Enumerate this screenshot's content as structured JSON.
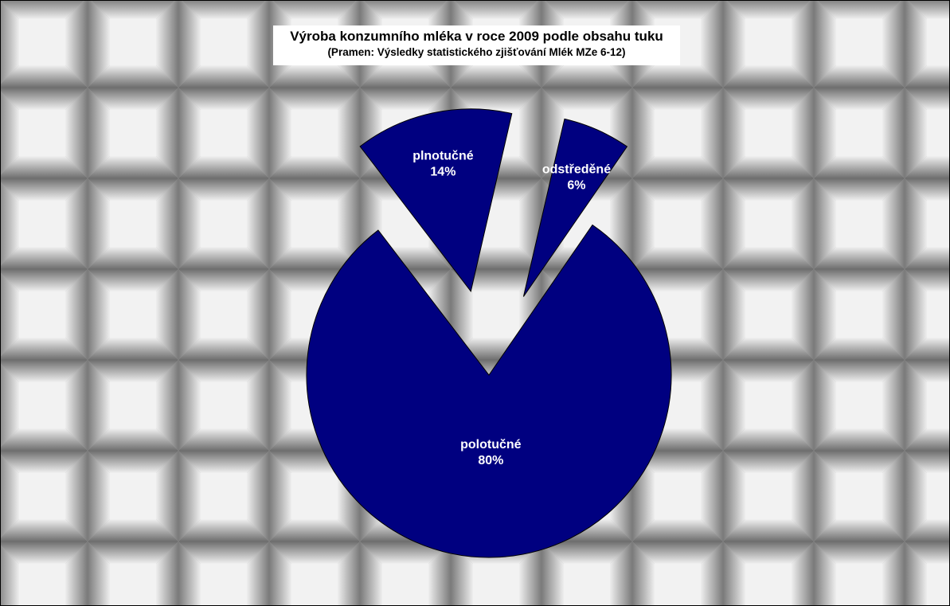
{
  "chart_data": {
    "type": "pie",
    "title": "Výroba konzumního mléka v roce 2009 podle obsahu tuku",
    "subtitle": "(Pramen: Výsledky statistického zjišťování Mlék MZe 6-12)",
    "slices": [
      {
        "label": "odstředěné",
        "value": 6,
        "value_label": "6%"
      },
      {
        "label": "polotučné",
        "value": 80,
        "value_label": "80%"
      },
      {
        "label": "plnotučné",
        "value": 14,
        "value_label": "14%"
      }
    ],
    "exploded": true,
    "legend": "none"
  },
  "colors": {
    "slice_fill": "#000080",
    "slice_stroke": "#000000",
    "label_text": "#ffffff",
    "background_tile_light": "#f2f2f2",
    "background_tile_dark": "#6e6e6e"
  }
}
